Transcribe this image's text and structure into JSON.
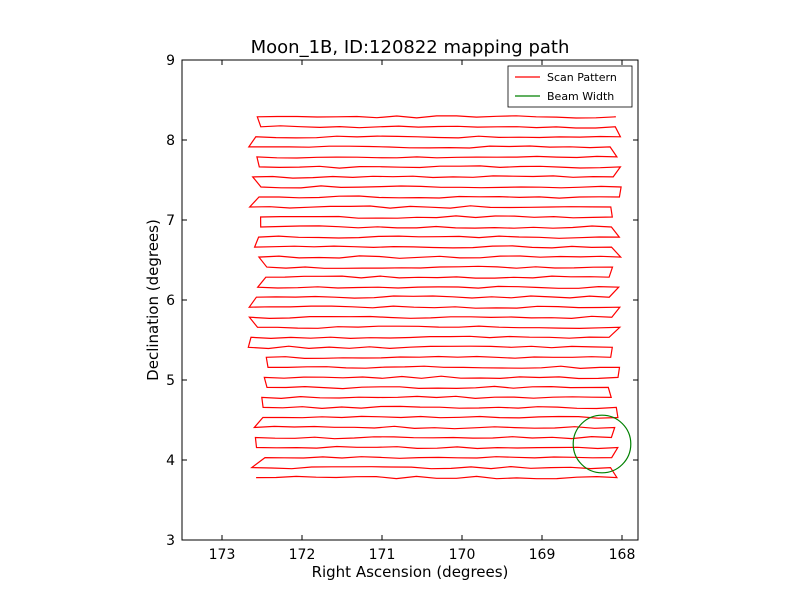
{
  "chart_data": {
    "type": "line",
    "title": "Moon_1B, ID:120822 mapping path",
    "xlabel": "Right Ascension (degrees)",
    "ylabel": "Declination (degrees)",
    "xlim": [
      173.5,
      167.8
    ],
    "ylim": [
      3,
      9
    ],
    "x_axis_inverted": true,
    "xticks": [
      173,
      172,
      171,
      170,
      169,
      168
    ],
    "yticks": [
      3,
      4,
      5,
      6,
      7,
      8,
      9
    ],
    "grid": false,
    "legend_position": "top-right",
    "colors": {
      "scan": "#ff0000",
      "beam": "#008000"
    },
    "series": [
      {
        "name": "Scan Pattern",
        "kind": "line",
        "ra_min": 172.55,
        "ra_max": 168.1,
        "dec_start": 3.78,
        "dec_end": 8.29,
        "rows": 37,
        "end_ra": 168.1
      },
      {
        "name": "Beam Width",
        "kind": "circle",
        "center": [
          168.25,
          4.2
        ],
        "radius": 0.36
      }
    ]
  }
}
